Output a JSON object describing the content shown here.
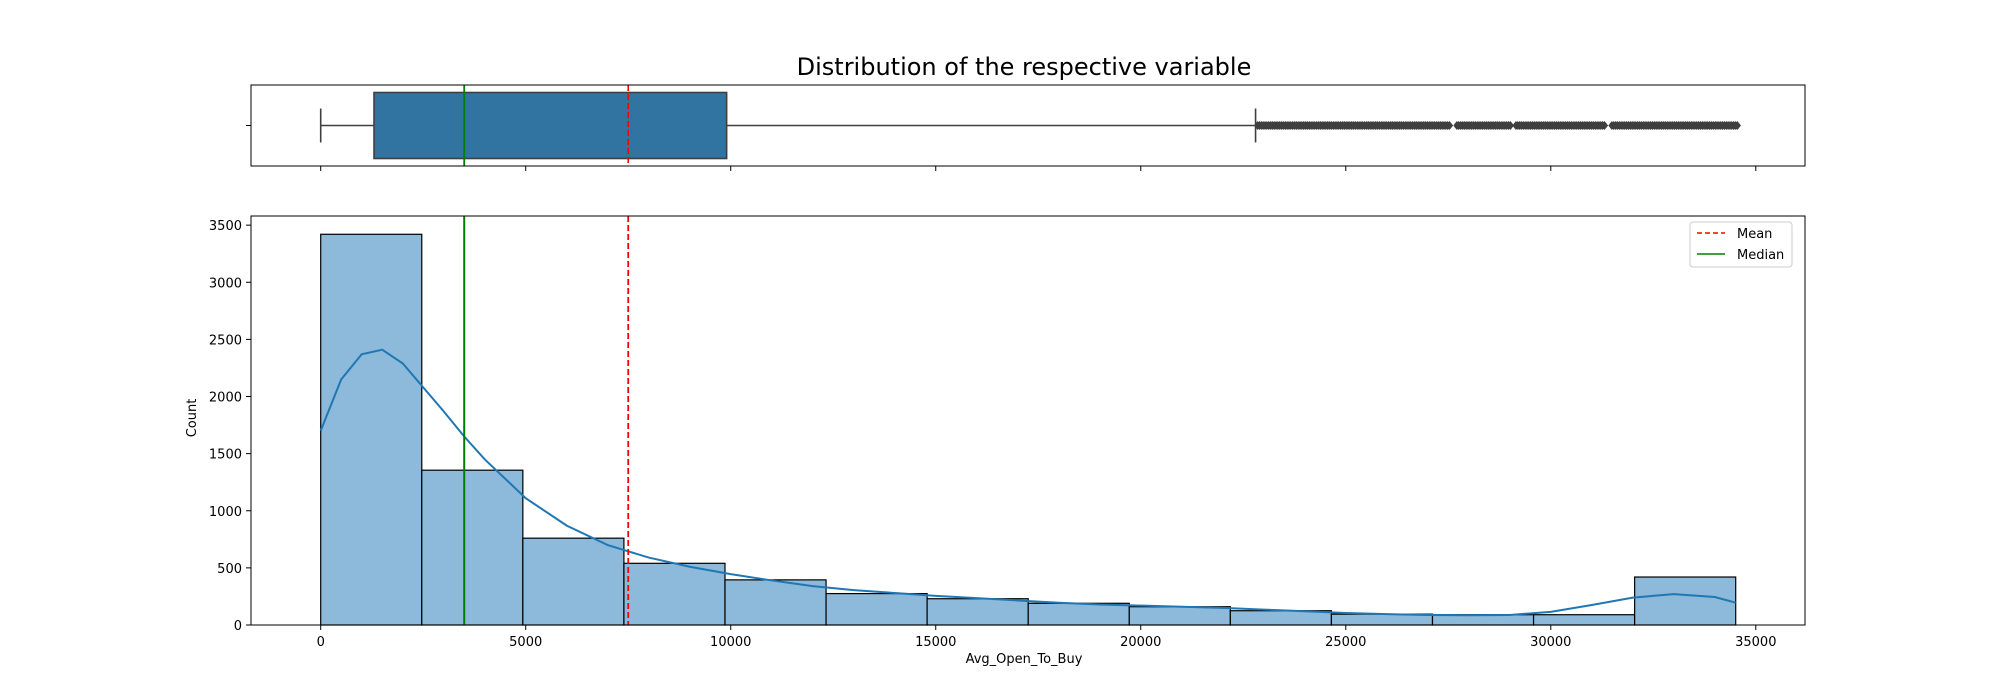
{
  "chart_data": [
    {
      "type": "box",
      "title": "Distribution of the respective variable",
      "x_range": [
        -1700,
        36200
      ],
      "xticks": [
        0,
        5000,
        10000,
        15000,
        20000,
        25000,
        30000,
        35000
      ],
      "whisker_low": 0,
      "q1": 1300,
      "median": 3500,
      "q3": 9900,
      "whisker_high": 22800,
      "mean": 7500,
      "outliers_range": [
        22850,
        34550
      ],
      "outlier_gaps": [
        [
          27550,
          27700
        ],
        [
          29050,
          29150
        ],
        [
          31350,
          31450
        ]
      ],
      "box_color": "#3274a1",
      "mean_color": "#ff0000",
      "median_color": "#008000"
    },
    {
      "type": "histogram",
      "xlabel": "Avg_Open_To_Buy",
      "ylabel": "Count",
      "x_range": [
        -1700,
        36200
      ],
      "y_range": [
        0,
        3580
      ],
      "xticks": [
        "0",
        "5000",
        "10000",
        "15000",
        "20000",
        "25000",
        "30000",
        "35000"
      ],
      "yticks": [
        "0",
        "500",
        "1000",
        "1500",
        "2000",
        "2500",
        "3000",
        "3500"
      ],
      "bin_edges": [
        0,
        2465,
        4930,
        7395,
        9860,
        12325,
        14790,
        17255,
        19720,
        22185,
        24650,
        27115,
        29580,
        32045,
        34510
      ],
      "counts": [
        3420,
        1355,
        760,
        540,
        395,
        275,
        230,
        190,
        160,
        125,
        95,
        90,
        90,
        420
      ],
      "bar_color": "#8db9da",
      "kde_color": "#1f77b4",
      "kde_x": [
        0,
        500,
        1000,
        1500,
        2000,
        2500,
        3000,
        3500,
        4000,
        5000,
        6000,
        7000,
        8000,
        9000,
        10000,
        11000,
        12000,
        13000,
        14000,
        15000,
        16000,
        17000,
        18000,
        19000,
        20000,
        21000,
        22000,
        23000,
        24000,
        25000,
        26000,
        27000,
        28000,
        29000,
        30000,
        31000,
        32000,
        33000,
        34000,
        34510
      ],
      "kde_y": [
        1700,
        2150,
        2370,
        2410,
        2290,
        2080,
        1870,
        1650,
        1450,
        1110,
        870,
        700,
        590,
        510,
        445,
        390,
        340,
        305,
        280,
        255,
        235,
        215,
        195,
        180,
        170,
        160,
        150,
        135,
        120,
        105,
        95,
        88,
        85,
        88,
        115,
        175,
        240,
        270,
        245,
        195
      ],
      "mean": 7500,
      "median": 3500,
      "legend": [
        {
          "label": "Mean",
          "color": "#ff0000",
          "style": "dashed"
        },
        {
          "label": "Median",
          "color": "#008000",
          "style": "solid"
        }
      ],
      "legend_position": "top-right"
    }
  ]
}
